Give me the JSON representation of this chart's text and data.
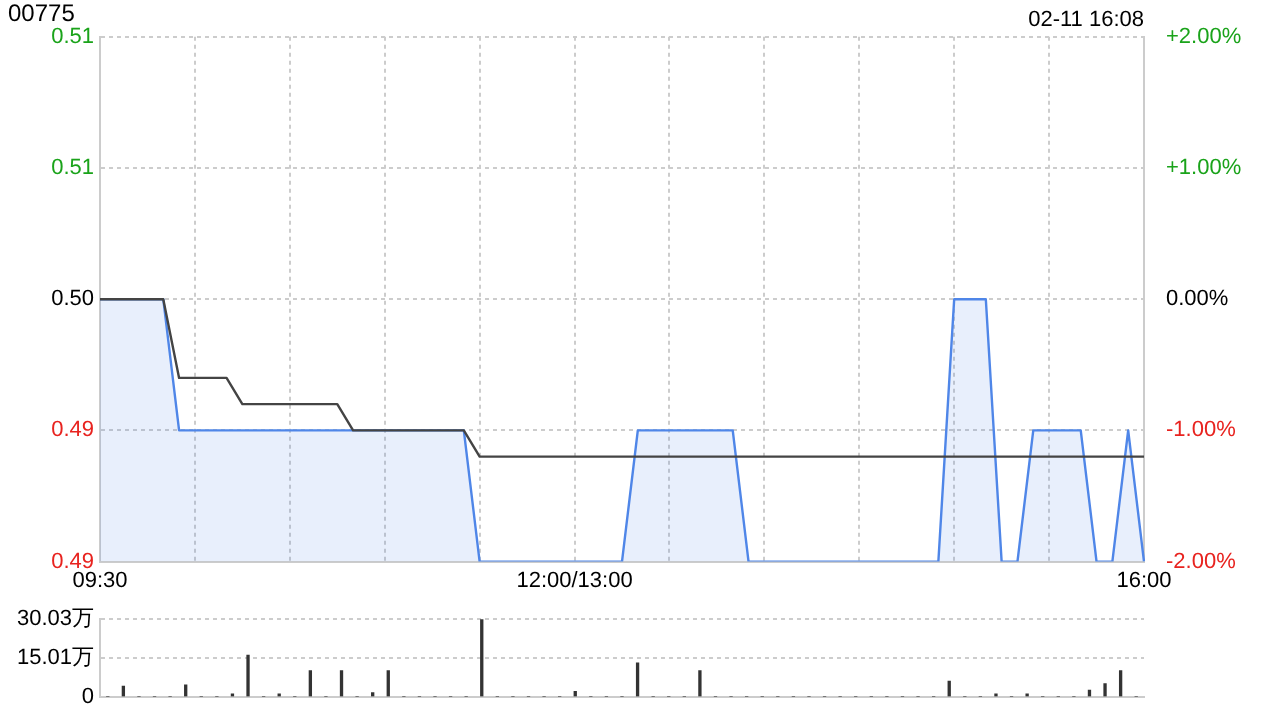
{
  "chart_data": [
    {
      "type": "area",
      "title": "00775",
      "annotations": [
        "02-11 16:08"
      ],
      "categories": [
        "09:30",
        null,
        null,
        null,
        null,
        null,
        null,
        null,
        null,
        null,
        null,
        null,
        null,
        null,
        null,
        null,
        null,
        null,
        null,
        null,
        null,
        null,
        null,
        null,
        null,
        null,
        null,
        null,
        null,
        null,
        "12:00/13:00",
        null,
        null,
        null,
        null,
        null,
        null,
        null,
        null,
        null,
        null,
        null,
        null,
        null,
        null,
        null,
        null,
        null,
        null,
        null,
        null,
        null,
        null,
        null,
        null,
        null,
        null,
        null,
        null,
        null,
        null,
        null,
        null,
        null,
        null,
        null,
        "16:00"
      ],
      "ylim": [
        0.49,
        0.51
      ],
      "yticks": [
        {
          "value": 0.49,
          "label": "0.49"
        },
        {
          "value": 0.495,
          "label": "0.49"
        },
        {
          "value": 0.5,
          "label": "0.50"
        },
        {
          "value": 0.505,
          "label": "0.51"
        },
        {
          "value": 0.51,
          "label": "0.51"
        }
      ],
      "y2lim": [
        -2,
        2
      ],
      "y2ticks": [
        {
          "value": -2,
          "label": "-2.00%"
        },
        {
          "value": -1,
          "label": "-1.00%"
        },
        {
          "value": 0,
          "label": "0.00%"
        },
        {
          "value": 1,
          "label": "+1.00%"
        },
        {
          "value": 2,
          "label": "+2.00%"
        }
      ],
      "grid": true,
      "legend": false,
      "marker": "none",
      "series": [
        {
          "type": "area",
          "color": "#4f86e8",
          "values": [
            0.5,
            0.5,
            0.5,
            0.5,
            0.5,
            0.495,
            0.495,
            0.495,
            0.495,
            0.495,
            0.495,
            0.495,
            0.495,
            0.495,
            0.495,
            0.495,
            0.495,
            0.495,
            0.495,
            0.495,
            0.495,
            0.495,
            0.495,
            0.495,
            0.49,
            0.49,
            0.49,
            0.49,
            0.49,
            0.49,
            0.49,
            0.49,
            0.49,
            0.49,
            0.495,
            0.495,
            0.495,
            0.495,
            0.495,
            0.495,
            0.495,
            0.49,
            0.49,
            0.49,
            0.49,
            0.49,
            0.49,
            0.49,
            0.49,
            0.49,
            0.49,
            0.49,
            0.49,
            0.49,
            0.5,
            0.5,
            0.5,
            0.49,
            0.49,
            0.495,
            0.495,
            0.495,
            0.495,
            0.49,
            0.49,
            0.495,
            0.49
          ]
        },
        {
          "type": "line",
          "color": "#444444",
          "values": [
            0.5,
            0.5,
            0.5,
            0.5,
            0.5,
            0.497,
            0.497,
            0.497,
            0.497,
            0.496,
            0.496,
            0.496,
            0.496,
            0.496,
            0.496,
            0.496,
            0.495,
            0.495,
            0.495,
            0.495,
            0.495,
            0.495,
            0.495,
            0.495,
            0.494,
            0.494,
            0.494,
            0.494,
            0.494,
            0.494,
            0.494,
            0.494,
            0.494,
            0.494,
            0.494,
            0.494,
            0.494,
            0.494,
            0.494,
            0.494,
            0.494,
            0.494,
            0.494,
            0.494,
            0.494,
            0.494,
            0.494,
            0.494,
            0.494,
            0.494,
            0.494,
            0.494,
            0.494,
            0.494,
            0.494,
            0.494,
            0.494,
            0.494,
            0.494,
            0.494,
            0.494,
            0.494,
            0.494,
            0.494,
            0.494,
            0.494,
            0.494
          ]
        }
      ]
    },
    {
      "type": "bar",
      "categories": [
        null,
        null,
        null,
        null,
        null,
        null,
        null,
        null,
        null,
        null,
        null,
        null,
        null,
        null,
        null,
        null,
        null,
        null,
        null,
        null,
        null,
        null,
        null,
        null,
        null,
        null,
        null,
        null,
        null,
        null,
        null,
        null,
        null,
        null,
        null,
        null,
        null,
        null,
        null,
        null,
        null,
        null,
        null,
        null,
        null,
        null,
        null,
        null,
        null,
        null,
        null,
        null,
        null,
        null,
        null,
        null,
        null,
        null,
        null,
        null,
        null,
        null,
        null,
        null,
        null,
        null,
        null
      ],
      "ylim": [
        0,
        30.03
      ],
      "yticks": [
        0,
        {
          "value": 15.01,
          "label": "15.01万"
        },
        {
          "value": 30.03,
          "label": "30.03万"
        }
      ],
      "tick_labels": "y",
      "grid": "y",
      "legend": false,
      "series": [
        {
          "color": "#333333",
          "values": [
            0,
            4,
            0,
            0,
            0,
            4.5,
            0,
            0,
            1,
            16,
            0,
            1,
            0,
            10,
            0,
            10,
            0,
            1.5,
            10,
            0,
            0,
            0,
            0,
            0,
            30,
            0,
            0,
            0,
            0,
            0,
            2,
            0,
            0,
            0,
            13,
            0,
            0,
            0,
            10,
            0,
            0,
            0,
            0,
            0,
            0,
            0,
            0,
            0,
            0,
            0,
            0,
            0,
            0,
            0,
            6,
            0,
            0,
            1,
            0,
            1,
            0,
            0,
            0,
            2.5,
            5,
            10,
            0
          ]
        }
      ]
    }
  ]
}
